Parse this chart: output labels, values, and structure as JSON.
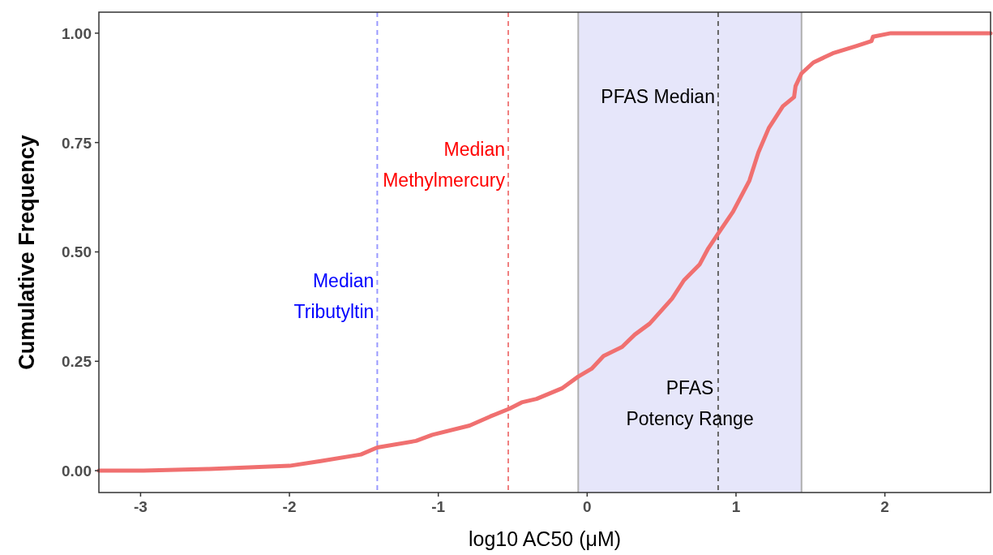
{
  "chart_data": {
    "type": "line",
    "xlabel": "log10 AC50 (μM)",
    "ylabel": "Cumulative Frequency",
    "series": [
      {
        "color": "#f07070",
        "x": [
          -3.28,
          -2.98,
          -2.54,
          -2.0,
          -1.79,
          -1.52,
          -1.41,
          -1.15,
          -1.04,
          -0.79,
          -0.65,
          -0.52,
          -0.44,
          -0.34,
          -0.17,
          -0.06,
          0.03,
          0.11,
          0.235,
          0.32,
          0.42,
          0.57,
          0.65,
          0.755,
          0.81,
          0.88,
          0.98,
          1.09,
          1.15,
          1.22,
          1.315,
          1.39,
          1.4,
          1.44,
          1.52,
          1.65,
          1.81,
          1.91,
          1.92,
          2.04,
          2.71
        ],
        "values": [
          0.0,
          0.0,
          0.004,
          0.011,
          0.022,
          0.037,
          0.053,
          0.068,
          0.082,
          0.103,
          0.124,
          0.142,
          0.156,
          0.164,
          0.188,
          0.215,
          0.233,
          0.262,
          0.283,
          0.311,
          0.336,
          0.393,
          0.435,
          0.471,
          0.506,
          0.542,
          0.592,
          0.663,
          0.727,
          0.783,
          0.833,
          0.854,
          0.879,
          0.908,
          0.933,
          0.954,
          0.971,
          0.982,
          0.992,
          1.0,
          1.0
        ]
      }
    ],
    "xlim": [
      -3.28,
      2.71
    ],
    "ylim": [
      -0.05,
      1.048
    ],
    "xticks": [
      -3,
      -2,
      -1,
      0,
      1,
      2
    ],
    "yticks": [
      {
        "value": 0,
        "label": "0.00"
      },
      {
        "value": 0.25,
        "label": "0.25"
      },
      {
        "value": 0.5,
        "label": "0.50"
      },
      {
        "value": 0.75,
        "label": "0.75"
      },
      {
        "value": 1,
        "label": "1.00"
      }
    ],
    "grid": false,
    "bands": [
      {
        "axis": "x",
        "from": -0.06,
        "to": 1.44,
        "label": "PFAS\nPotency Range",
        "color": "#e6e6fa"
      }
    ],
    "ref_lines": [
      {
        "axis": "x",
        "value": -1.41,
        "label": "Median\nTributyltin",
        "color": "#9999ff",
        "line_style": "dashed"
      },
      {
        "axis": "x",
        "value": -0.53,
        "label": "Median\nMethylmercury",
        "color": "#f08080",
        "line_style": "dashed"
      },
      {
        "axis": "x",
        "value": 0.88,
        "label": "PFAS Median",
        "color": "#666666",
        "line_style": "dashed"
      },
      {
        "axis": "x",
        "value": -0.06,
        "color": "#b0b0b0",
        "line_style": "solid"
      },
      {
        "axis": "x",
        "value": 1.44,
        "color": "#b0b0b0",
        "line_style": "solid"
      }
    ]
  }
}
